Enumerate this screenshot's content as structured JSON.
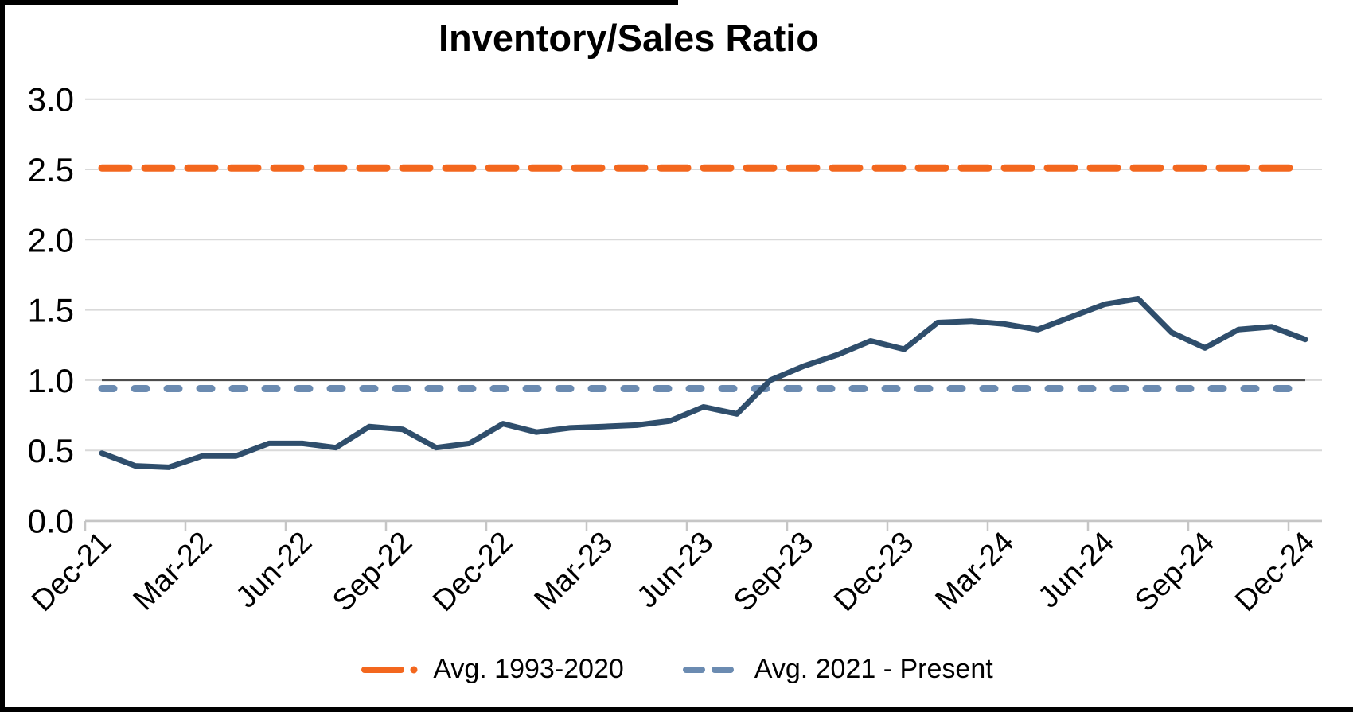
{
  "title": "Inventory/Sales Ratio",
  "colors": {
    "series_line": "#2F4E6C",
    "avg_1993_2020": "#F3671E",
    "avg_2021_present": "#6B8BB1",
    "balance_line": "#4D4D4D",
    "gridline": "#D9D9D9",
    "axis": "#C6C6C6",
    "text": "#000000"
  },
  "chart_data": {
    "type": "line",
    "title": "Inventory/Sales Ratio",
    "x": [
      "Dec-21",
      "Jan-22",
      "Feb-22",
      "Mar-22",
      "Apr-22",
      "May-22",
      "Jun-22",
      "Jul-22",
      "Aug-22",
      "Sep-22",
      "Oct-22",
      "Nov-22",
      "Dec-22",
      "Jan-23",
      "Feb-23",
      "Mar-23",
      "Apr-23",
      "May-23",
      "Jun-23",
      "Jul-23",
      "Aug-23",
      "Sep-23",
      "Oct-23",
      "Nov-23",
      "Dec-23",
      "Jan-24",
      "Feb-24",
      "Mar-24",
      "Apr-24",
      "May-24",
      "Jun-24",
      "Jul-24",
      "Aug-24",
      "Sep-24",
      "Oct-24",
      "Nov-24",
      "Dec-24"
    ],
    "series": [
      {
        "name": "Inventory/Sales Ratio",
        "type": "line",
        "style": "solid",
        "values": [
          0.48,
          0.39,
          0.38,
          0.46,
          0.46,
          0.55,
          0.55,
          0.52,
          0.67,
          0.65,
          0.52,
          0.55,
          0.69,
          0.63,
          0.66,
          0.67,
          0.68,
          0.71,
          0.81,
          0.76,
          1.0,
          1.1,
          1.18,
          1.28,
          1.22,
          1.41,
          1.42,
          1.4,
          1.36,
          1.45,
          1.54,
          1.58,
          1.34,
          1.23,
          1.36,
          1.38,
          1.29
        ]
      },
      {
        "name": "Avg. 1993-2020",
        "type": "reference-line",
        "style": "long-dash",
        "value": 2.51
      },
      {
        "name": "Avg. 2021 - Present",
        "type": "reference-line",
        "style": "dash",
        "value": 0.94
      },
      {
        "name": "balance-line",
        "type": "reference-line",
        "style": "solid",
        "value": 1.0
      }
    ],
    "ylim": [
      0.0,
      3.0
    ],
    "ytick_labels": [
      "3.0",
      "2.5",
      "2.0",
      "1.5",
      "1.0",
      "0.5",
      "0.0"
    ],
    "ytick_values": [
      3.0,
      2.5,
      2.0,
      1.5,
      1.0,
      0.5,
      0.0
    ],
    "xtick_labels": [
      "Dec-21",
      "Mar-22",
      "Jun-22",
      "Sep-22",
      "Dec-22",
      "Mar-23",
      "Jun-23",
      "Sep-23",
      "Dec-23",
      "Mar-24",
      "Jun-24",
      "Sep-24",
      "Dec-24"
    ],
    "xtick_label_every": 3,
    "grid": "horizontal",
    "legend_position": "bottom"
  },
  "legend": {
    "items": [
      {
        "label": "Avg. 1993-2020",
        "key": "orange-long-dash-dot"
      },
      {
        "label": "Avg. 2021 - Present",
        "key": "blue-dashes"
      }
    ]
  }
}
